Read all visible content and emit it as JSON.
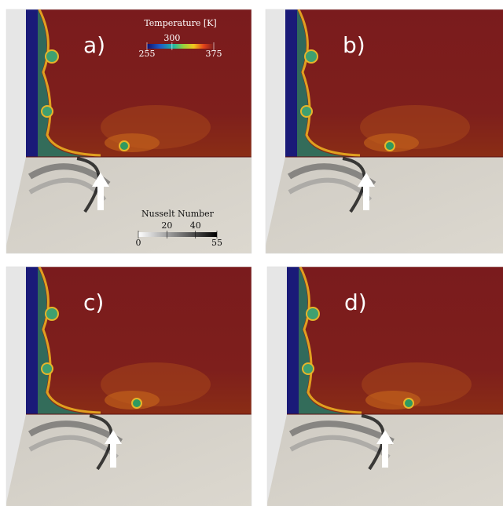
{
  "panels": [
    {
      "label": "a)"
    },
    {
      "label": "b)"
    },
    {
      "label": "c)"
    },
    {
      "label": "d)"
    }
  ],
  "temperature_colorbar": {
    "title": "Temperature [K]",
    "ticks": [
      255,
      300,
      375
    ]
  },
  "nusselt_colorbar": {
    "title": "Nusselt Number",
    "ticks": [
      0,
      20,
      40,
      55
    ]
  }
}
